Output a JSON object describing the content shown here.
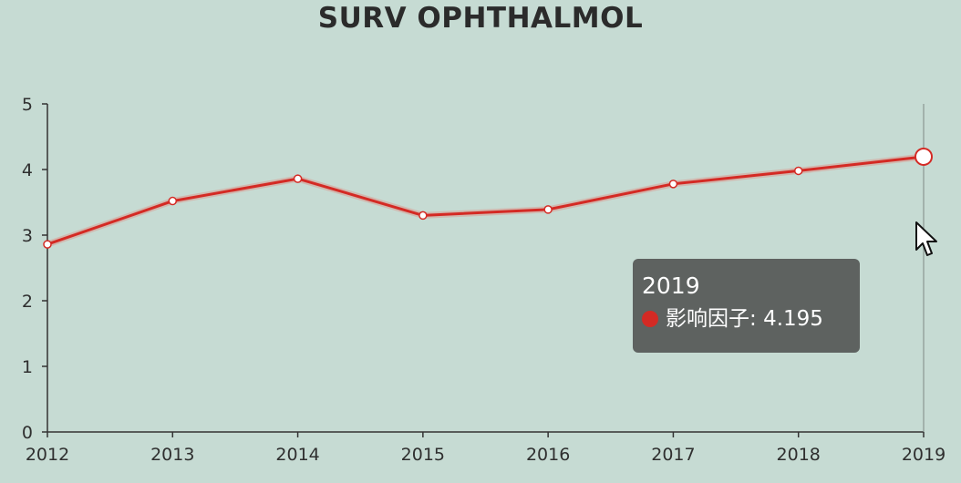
{
  "chart_data": {
    "type": "line",
    "title": "SURV OPHTHALMOL",
    "xlabel": "",
    "ylabel": "",
    "categories": [
      "2012",
      "2013",
      "2014",
      "2015",
      "2016",
      "2017",
      "2018",
      "2019"
    ],
    "series": [
      {
        "name": "影响因子",
        "values": [
          2.86,
          3.52,
          3.86,
          3.3,
          3.39,
          3.78,
          3.98,
          4.195
        ],
        "color": "#d42a24"
      }
    ],
    "ylim": [
      0,
      5
    ],
    "yticks": [
      "0",
      "1",
      "2",
      "3",
      "4",
      "5"
    ],
    "grid": false,
    "legend": "none",
    "highlight_index": 7
  },
  "tooltip": {
    "title": "2019",
    "series_label": "影响因子",
    "value_text": "4.195"
  },
  "colors": {
    "background": "#c6dbd3",
    "line": "#d42a24",
    "axis": "#333333",
    "tooltip_bg": "#585c5a"
  }
}
